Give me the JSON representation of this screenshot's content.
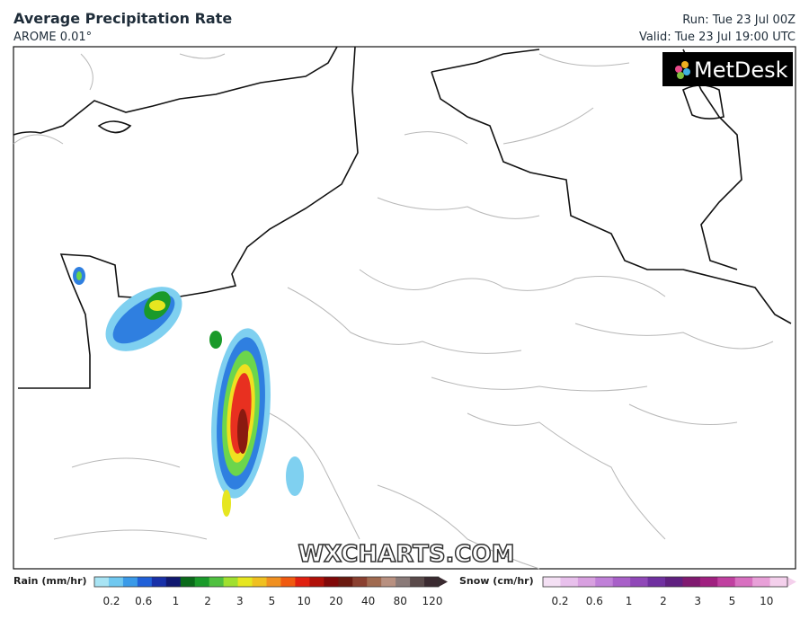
{
  "header": {
    "title": "Average Precipitation Rate",
    "model": "AROME 0.01°",
    "run": "Run: Tue 23 Jul 00Z",
    "valid": "Valid: Tue 23 Jul 19:00 UTC"
  },
  "logo": "MetDesk",
  "watermark": "WXCHARTS.COM",
  "legend": {
    "rain": {
      "label": "Rain (mm/hr)",
      "ticks": [
        0.2,
        0.6,
        1,
        2,
        3,
        5,
        10,
        20,
        40,
        80,
        120
      ]
    },
    "snow": {
      "label": "Snow (cm/hr)",
      "ticks": [
        0.2,
        0.6,
        1,
        2,
        3,
        5,
        10
      ]
    }
  }
}
